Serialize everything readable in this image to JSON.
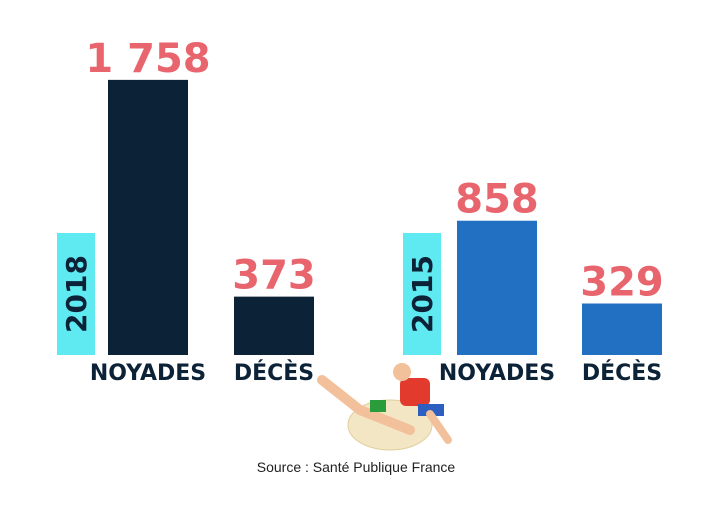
{
  "chart_data": [
    {
      "type": "bar",
      "title": "2018",
      "categories": [
        "NOYADES",
        "DÉCÈS"
      ],
      "values": [
        1758,
        373
      ],
      "value_labels": [
        "1 758",
        "373"
      ],
      "color": "#0c2237"
    },
    {
      "type": "bar",
      "title": "2015",
      "categories": [
        "NOYADES",
        "DÉCÈS"
      ],
      "values": [
        858,
        329
      ],
      "value_labels": [
        "858",
        "329"
      ],
      "color": "#2270c2"
    }
  ],
  "source": "Source :  Santé Publique France"
}
